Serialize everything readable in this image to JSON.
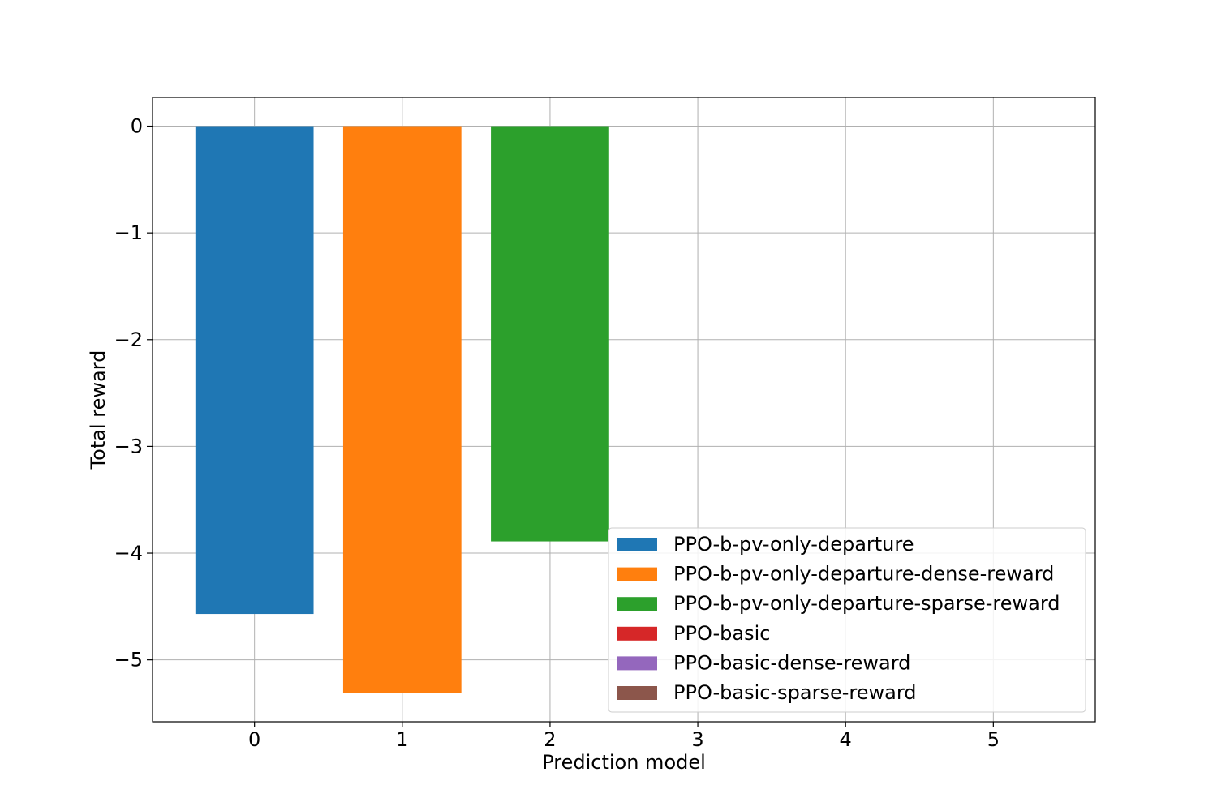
{
  "chart_data": {
    "type": "bar",
    "xlabel": "Prediction model",
    "ylabel": "Total reward",
    "xlim": [
      -0.69,
      5.69
    ],
    "ylim": [
      -5.58,
      0.27
    ],
    "x_ticks": [
      0,
      1,
      2,
      3,
      4,
      5
    ],
    "x_tick_labels": [
      "0",
      "1",
      "2",
      "3",
      "4",
      "5"
    ],
    "y_ticks": [
      0,
      -1,
      -2,
      -3,
      -4,
      -5
    ],
    "y_tick_labels": [
      "0",
      "−1",
      "−2",
      "−3",
      "−4",
      "−5"
    ],
    "grid": true,
    "legend_position": "lower-right",
    "series": [
      {
        "name": "PPO-b-pv-only-departure",
        "x": 0,
        "value": -4.57,
        "color": "#1f77b4"
      },
      {
        "name": "PPO-b-pv-only-departure-dense-reward",
        "x": 1,
        "value": -5.31,
        "color": "#ff7f0e"
      },
      {
        "name": "PPO-b-pv-only-departure-sparse-reward",
        "x": 2,
        "value": -3.89,
        "color": "#2ca02c"
      },
      {
        "name": "PPO-basic",
        "x": 3,
        "value": 0,
        "color": "#d62728"
      },
      {
        "name": "PPO-basic-dense-reward",
        "x": 4,
        "value": 0,
        "color": "#9467bd"
      },
      {
        "name": "PPO-basic-sparse-reward",
        "x": 5,
        "value": 0,
        "color": "#8c564b"
      }
    ]
  }
}
